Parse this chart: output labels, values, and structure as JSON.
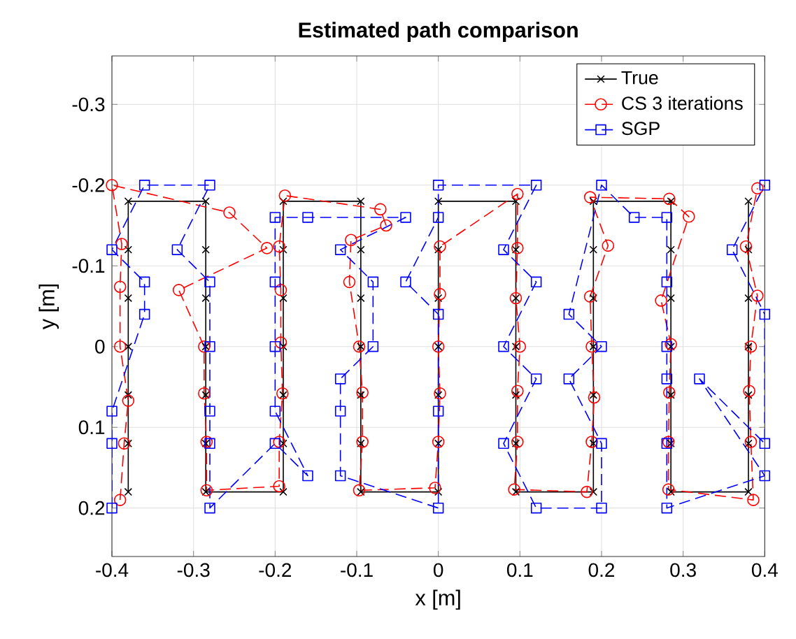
{
  "chart_data": {
    "type": "line",
    "title": "Estimated path comparison",
    "xlabel": "x [m]",
    "ylabel": "y [m]",
    "xlim": [
      -0.4,
      0.4
    ],
    "xticks": [
      -0.4,
      -0.3,
      -0.2,
      -0.1,
      0,
      0.1,
      0.2,
      0.3,
      0.4
    ],
    "ylim": [
      0.26,
      -0.36
    ],
    "yticks": [
      -0.3,
      -0.2,
      -0.1,
      0,
      0.1,
      0.2
    ],
    "grid": true,
    "legend": "top right",
    "series": [
      {
        "name": "True",
        "color": "#000000",
        "marker": "cross",
        "line_style": "solid",
        "x": [
          -0.38,
          -0.38,
          -0.38,
          -0.38,
          -0.38,
          -0.38,
          -0.38,
          -0.285,
          -0.285,
          -0.285,
          -0.285,
          -0.285,
          -0.285,
          -0.285,
          -0.19,
          -0.19,
          -0.19,
          -0.19,
          -0.19,
          -0.19,
          -0.19,
          -0.095,
          -0.095,
          -0.095,
          -0.095,
          -0.095,
          -0.095,
          -0.095,
          0,
          0,
          0,
          0,
          0,
          0,
          0,
          0.095,
          0.095,
          0.095,
          0.095,
          0.095,
          0.095,
          0.095,
          0.19,
          0.19,
          0.19,
          0.19,
          0.19,
          0.19,
          0.19,
          0.285,
          0.285,
          0.285,
          0.285,
          0.285,
          0.285,
          0.285,
          0.38,
          0.38,
          0.38,
          0.38,
          0.38,
          0.38,
          0.38
        ],
        "values": [
          0.18,
          0.12,
          0.06,
          0,
          -0.06,
          -0.12,
          -0.18,
          -0.18,
          -0.12,
          -0.06,
          0,
          0.06,
          0.12,
          0.18,
          0.18,
          0.12,
          0.06,
          0,
          -0.06,
          -0.12,
          -0.18,
          -0.18,
          -0.12,
          -0.06,
          0,
          0.06,
          0.12,
          0.18,
          0.18,
          0.12,
          0.06,
          0,
          -0.06,
          -0.12,
          -0.18,
          -0.18,
          -0.12,
          -0.06,
          0,
          0.06,
          0.12,
          0.18,
          0.18,
          0.12,
          0.06,
          0,
          -0.06,
          -0.12,
          -0.18,
          -0.18,
          -0.12,
          -0.06,
          0,
          0.06,
          0.12,
          0.18,
          0.18,
          0.12,
          0.06,
          0,
          -0.06,
          -0.12,
          -0.18
        ]
      },
      {
        "name": "CS 3 iterations",
        "color": "#ff0000",
        "marker": "circle",
        "line_style": "dashed",
        "x": [
          -0.39,
          -0.385,
          -0.38,
          -0.39,
          -0.39,
          -0.388,
          -0.4,
          -0.256,
          -0.21,
          -0.318,
          -0.287,
          -0.287,
          -0.284,
          -0.284,
          -0.195,
          -0.195,
          -0.191,
          -0.193,
          -0.193,
          -0.195,
          -0.188,
          -0.071,
          -0.064,
          -0.107,
          -0.109,
          -0.097,
          -0.093,
          -0.093,
          -0.097,
          -0.004,
          0,
          0.002,
          0,
          0.002,
          0.002,
          0.097,
          0.097,
          0.095,
          0.1,
          0.097,
          0.097,
          0.093,
          0.182,
          0.188,
          0.191,
          0.188,
          0.186,
          0.208,
          0.186,
          0.283,
          0.307,
          0.273,
          0.285,
          0.283,
          0.282,
          0.282,
          0.386,
          0.383,
          0.381,
          0.383,
          0.391,
          0.377,
          0.391
        ],
        "values": [
          0.19,
          0.12,
          0.067,
          0,
          -0.074,
          -0.127,
          -0.2,
          -0.166,
          -0.122,
          -0.07,
          0,
          0.058,
          0.118,
          0.178,
          0.173,
          0.118,
          0.058,
          -0.005,
          -0.07,
          -0.124,
          -0.187,
          -0.17,
          -0.15,
          -0.132,
          -0.08,
          0,
          0.057,
          0.118,
          0.178,
          0.175,
          0.118,
          0.058,
          0,
          -0.065,
          -0.124,
          -0.189,
          -0.122,
          -0.06,
          0,
          0.055,
          0.118,
          0.177,
          0.18,
          0.118,
          0.063,
          0,
          -0.062,
          -0.125,
          -0.185,
          -0.183,
          -0.161,
          -0.057,
          -0.003,
          0.057,
          0.118,
          0.177,
          0.19,
          0.118,
          0.055,
          0,
          -0.063,
          -0.124,
          -0.196
        ]
      },
      {
        "name": "SGP",
        "color": "#0000ff",
        "marker": "square",
        "line_style": "dashed",
        "x": [
          -0.4,
          -0.4,
          -0.4,
          -0.36,
          -0.36,
          -0.4,
          -0.36,
          -0.28,
          -0.32,
          -0.28,
          -0.28,
          -0.28,
          -0.28,
          -0.28,
          -0.2,
          -0.16,
          -0.2,
          -0.2,
          -0.2,
          -0.2,
          -0.16,
          -0.04,
          -0.12,
          -0.08,
          -0.08,
          -0.12,
          -0.12,
          -0.12,
          0,
          0,
          0,
          -0.04,
          0,
          0,
          0.12,
          0.08,
          0.12,
          0.08,
          0.12,
          0.08,
          0.12,
          0.2,
          0.2,
          0.16,
          0.2,
          0.16,
          0.2,
          0.24,
          0.28,
          0.28,
          0.28,
          0.28,
          0.28,
          0.28,
          0.4,
          0.32,
          0.4,
          0.4,
          0.36,
          0.4
        ],
        "values": [
          0.2,
          0.12,
          0.08,
          -0.04,
          -0.08,
          -0.12,
          -0.2,
          -0.2,
          -0.12,
          -0.08,
          0,
          0.08,
          0.12,
          0.2,
          0.12,
          0.16,
          0.08,
          0,
          -0.08,
          -0.16,
          -0.16,
          -0.16,
          -0.12,
          -0.08,
          0,
          0.04,
          0.08,
          0.16,
          0.2,
          0.08,
          -0.04,
          -0.08,
          -0.16,
          -0.2,
          -0.2,
          -0.12,
          -0.08,
          0,
          0.04,
          0.12,
          0.2,
          0.2,
          0.12,
          0.04,
          0,
          -0.04,
          -0.2,
          -0.16,
          -0.16,
          -0.08,
          0,
          0.04,
          0.12,
          0.2,
          0.16,
          0.04,
          0.12,
          -0.04,
          -0.12,
          -0.2
        ]
      }
    ]
  }
}
